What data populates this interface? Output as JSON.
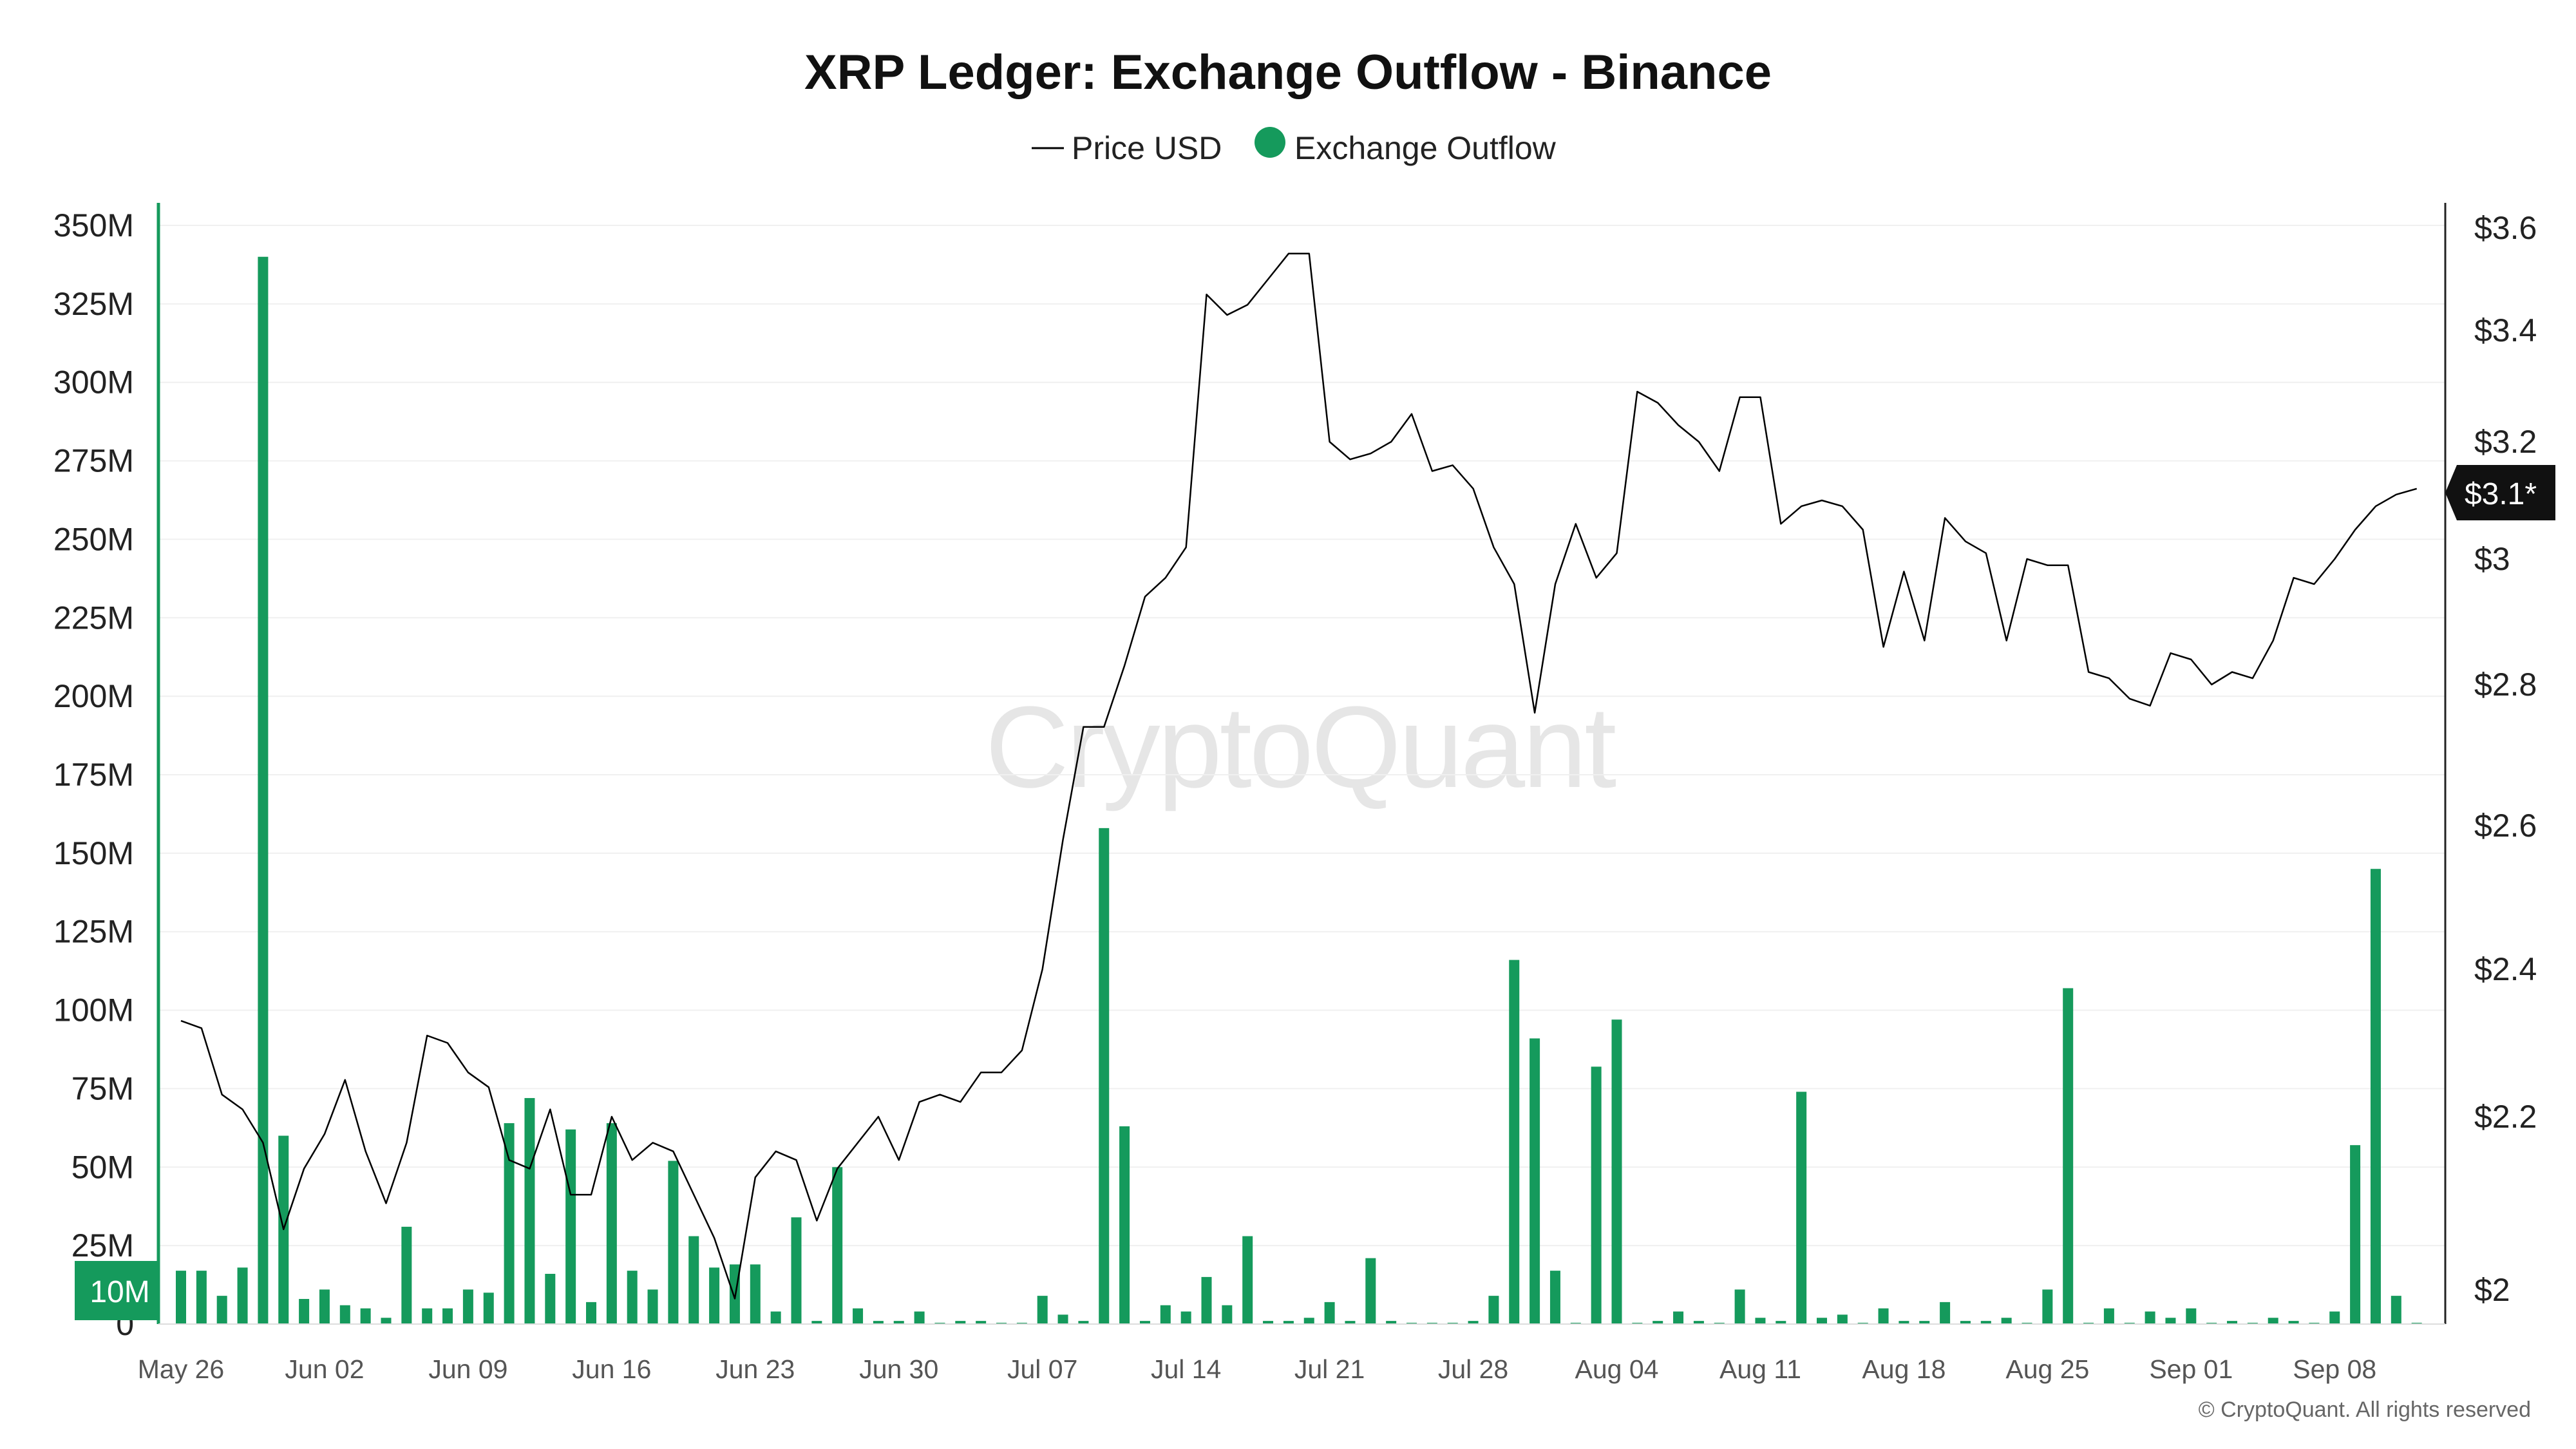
{
  "title": "XRP Ledger: Exchange Outflow - Binance",
  "legend": [
    {
      "label": "Price USD",
      "marker": "line",
      "color": "#000000"
    },
    {
      "label": "Exchange Outflow",
      "marker": "dot",
      "color": "#159a5c"
    }
  ],
  "watermark": "CryptoQuant",
  "copyright": "© CryptoQuant. All rights reserved",
  "colors": {
    "outflow": "#159a5c",
    "price": "#000000",
    "grid": "#f0f0f0",
    "badge_bg": "#111111"
  },
  "price_badge": "$3.1*",
  "outflow_badge": "10M",
  "chart_data": {
    "type": "bar",
    "x_tick_labels": [
      "May 26",
      "Jun 02",
      "Jun 09",
      "Jun 16",
      "Jun 23",
      "Jun 30",
      "Jul 07",
      "Jul 14",
      "Jul 21",
      "Jul 28",
      "Aug 04",
      "Aug 11",
      "Aug 18",
      "Aug 25",
      "Sep 01",
      "Sep 08"
    ],
    "x_range": [
      "2025-05-26",
      "2025-09-12"
    ],
    "left_axis": {
      "ticks": [
        0,
        25,
        50,
        75,
        100,
        125,
        150,
        175,
        200,
        225,
        250,
        275,
        300,
        325,
        350
      ],
      "tick_labels": [
        "0",
        "25M",
        "50M",
        "75M",
        "100M",
        "125M",
        "150M",
        "175M",
        "200M",
        "225M",
        "250M",
        "275M",
        "300M",
        "325M",
        "350M"
      ],
      "range": [
        0,
        350
      ],
      "unit": "M"
    },
    "right_axis": {
      "ticks": [
        2.0,
        2.2,
        2.4,
        2.6,
        2.8,
        3.0,
        3.2,
        3.4,
        3.6
      ],
      "tick_labels": [
        "$2",
        "$2.2",
        "$2.4",
        "$2.6",
        "$2.8",
        "$3",
        "$3.2",
        "$3.4",
        "$3.6"
      ]
    },
    "series": [
      {
        "name": "Exchange Outflow",
        "type": "bar",
        "axis": "left",
        "x": [
          "2025-05-26",
          "2025-05-27",
          "2025-05-28",
          "2025-05-29",
          "2025-05-30",
          "2025-05-31",
          "2025-06-01",
          "2025-06-02",
          "2025-06-03",
          "2025-06-04",
          "2025-06-05",
          "2025-06-06",
          "2025-06-07",
          "2025-06-08",
          "2025-06-09",
          "2025-06-10",
          "2025-06-11",
          "2025-06-12",
          "2025-06-13",
          "2025-06-14",
          "2025-06-15",
          "2025-06-16",
          "2025-06-17",
          "2025-06-18",
          "2025-06-19",
          "2025-06-20",
          "2025-06-21",
          "2025-06-22",
          "2025-06-23",
          "2025-06-24",
          "2025-06-25",
          "2025-06-26",
          "2025-06-27",
          "2025-06-28",
          "2025-06-29",
          "2025-06-30",
          "2025-07-01",
          "2025-07-02",
          "2025-07-03",
          "2025-07-04",
          "2025-07-05",
          "2025-07-06",
          "2025-07-07",
          "2025-07-08",
          "2025-07-09",
          "2025-07-10",
          "2025-07-11",
          "2025-07-12",
          "2025-07-13",
          "2025-07-14",
          "2025-07-15",
          "2025-07-16",
          "2025-07-17",
          "2025-07-18",
          "2025-07-19",
          "2025-07-20",
          "2025-07-21",
          "2025-07-22",
          "2025-07-23",
          "2025-07-24",
          "2025-07-25",
          "2025-07-26",
          "2025-07-27",
          "2025-07-28",
          "2025-07-29",
          "2025-07-30",
          "2025-07-31",
          "2025-08-01",
          "2025-08-02",
          "2025-08-03",
          "2025-08-04",
          "2025-08-05",
          "2025-08-06",
          "2025-08-07",
          "2025-08-08",
          "2025-08-09",
          "2025-08-10",
          "2025-08-11",
          "2025-08-12",
          "2025-08-13",
          "2025-08-14",
          "2025-08-15",
          "2025-08-16",
          "2025-08-17",
          "2025-08-18",
          "2025-08-19",
          "2025-08-20",
          "2025-08-21",
          "2025-08-22",
          "2025-08-23",
          "2025-08-24",
          "2025-08-25",
          "2025-08-26",
          "2025-08-27",
          "2025-08-28",
          "2025-08-29",
          "2025-08-30",
          "2025-08-31",
          "2025-09-01",
          "2025-09-02",
          "2025-09-03",
          "2025-09-04",
          "2025-09-05",
          "2025-09-06",
          "2025-09-07",
          "2025-09-08",
          "2025-09-09",
          "2025-09-10",
          "2025-09-11",
          "2025-09-12"
        ],
        "values": [
          17,
          17,
          9,
          18,
          340,
          60,
          8,
          11,
          6,
          5,
          2,
          31,
          5,
          5,
          11,
          10,
          64,
          72,
          16,
          62,
          7,
          64,
          17,
          11,
          52,
          28,
          18,
          19,
          19,
          4,
          34,
          1,
          50,
          5,
          1,
          1,
          4,
          0,
          1,
          1,
          0,
          0,
          9,
          3,
          1,
          158,
          63,
          1,
          6,
          4,
          15,
          6,
          28,
          1,
          1,
          2,
          7,
          1,
          21,
          1,
          0,
          0,
          0,
          1,
          9,
          116,
          91,
          17,
          0,
          82,
          97,
          0,
          1,
          4,
          1,
          0,
          11,
          2,
          1,
          74,
          2,
          3,
          0,
          5,
          1,
          1,
          7,
          1,
          1,
          2,
          0,
          11,
          107,
          0,
          5,
          0,
          4,
          2,
          5,
          0,
          1,
          0,
          2,
          1,
          0,
          4,
          57,
          145,
          9,
          0
        ]
      },
      {
        "name": "Price USD",
        "type": "line",
        "axis": "right",
        "x": [
          "2025-05-26",
          "2025-05-27",
          "2025-05-28",
          "2025-05-29",
          "2025-05-30",
          "2025-05-31",
          "2025-06-01",
          "2025-06-02",
          "2025-06-03",
          "2025-06-04",
          "2025-06-05",
          "2025-06-06",
          "2025-06-07",
          "2025-06-08",
          "2025-06-09",
          "2025-06-10",
          "2025-06-11",
          "2025-06-12",
          "2025-06-13",
          "2025-06-14",
          "2025-06-15",
          "2025-06-16",
          "2025-06-17",
          "2025-06-18",
          "2025-06-19",
          "2025-06-20",
          "2025-06-21",
          "2025-06-22",
          "2025-06-23",
          "2025-06-24",
          "2025-06-25",
          "2025-06-26",
          "2025-06-27",
          "2025-06-28",
          "2025-06-29",
          "2025-06-30",
          "2025-07-01",
          "2025-07-02",
          "2025-07-03",
          "2025-07-04",
          "2025-07-05",
          "2025-07-06",
          "2025-07-07",
          "2025-07-08",
          "2025-07-09",
          "2025-07-10",
          "2025-07-11",
          "2025-07-12",
          "2025-07-13",
          "2025-07-14",
          "2025-07-15",
          "2025-07-16",
          "2025-07-17",
          "2025-07-18",
          "2025-07-19",
          "2025-07-20",
          "2025-07-21",
          "2025-07-22",
          "2025-07-23",
          "2025-07-24",
          "2025-07-25",
          "2025-07-26",
          "2025-07-27",
          "2025-07-28",
          "2025-07-29",
          "2025-07-30",
          "2025-07-31",
          "2025-08-01",
          "2025-08-02",
          "2025-08-03",
          "2025-08-04",
          "2025-08-05",
          "2025-08-06",
          "2025-08-07",
          "2025-08-08",
          "2025-08-09",
          "2025-08-10",
          "2025-08-11",
          "2025-08-12",
          "2025-08-13",
          "2025-08-14",
          "2025-08-15",
          "2025-08-16",
          "2025-08-17",
          "2025-08-18",
          "2025-08-19",
          "2025-08-20",
          "2025-08-21",
          "2025-08-22",
          "2025-08-23",
          "2025-08-24",
          "2025-08-25",
          "2025-08-26",
          "2025-08-27",
          "2025-08-28",
          "2025-08-29",
          "2025-08-30",
          "2025-08-31",
          "2025-09-01",
          "2025-09-02",
          "2025-09-03",
          "2025-09-04",
          "2025-09-05",
          "2025-09-06",
          "2025-09-07",
          "2025-09-08",
          "2025-09-09",
          "2025-09-10",
          "2025-09-11",
          "2025-09-12"
        ],
        "values": [
          2.33,
          2.32,
          2.23,
          2.21,
          2.17,
          2.07,
          2.14,
          2.18,
          2.25,
          2.16,
          2.1,
          2.17,
          2.31,
          2.3,
          2.26,
          2.24,
          2.15,
          2.14,
          2.21,
          2.11,
          2.11,
          2.2,
          2.15,
          2.17,
          2.16,
          2.11,
          2.06,
          1.99,
          2.13,
          2.16,
          2.15,
          2.08,
          2.14,
          2.17,
          2.2,
          2.15,
          2.22,
          2.23,
          2.22,
          2.26,
          2.26,
          2.29,
          2.4,
          2.58,
          2.74,
          2.74,
          2.83,
          2.94,
          2.97,
          3.02,
          3.47,
          3.43,
          3.45,
          3.5,
          3.55,
          3.55,
          3.2,
          3.17,
          3.18,
          3.2,
          3.25,
          3.15,
          3.16,
          3.12,
          3.02,
          2.96,
          2.76,
          2.96,
          3.06,
          2.97,
          3.01,
          3.29,
          3.27,
          3.23,
          3.2,
          3.15,
          3.28,
          3.28,
          3.06,
          3.09,
          3.1,
          3.09,
          3.05,
          2.86,
          2.98,
          2.87,
          3.07,
          3.03,
          3.01,
          2.87,
          3.0,
          2.99,
          2.99,
          2.82,
          2.81,
          2.78,
          2.77,
          2.85,
          2.84,
          2.8,
          2.82,
          2.81,
          2.87,
          2.97,
          2.96,
          3.0,
          3.05,
          3.09,
          3.11,
          3.12
        ]
      }
    ]
  }
}
